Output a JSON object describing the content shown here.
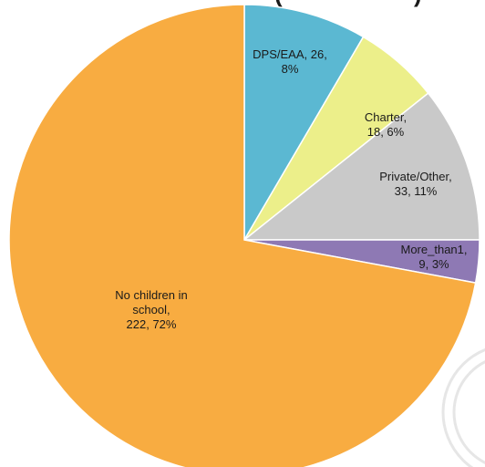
{
  "chart_data": {
    "type": "pie",
    "title_fragment": "(",
    "title_fragment_right": ")",
    "slices": [
      {
        "name": "DPS/EAA",
        "value": 26,
        "percent": "8%",
        "color": "#5bb8d2",
        "label_lines": [
          "DPS/EAA, 26,",
          "8%"
        ]
      },
      {
        "name": "Charter",
        "value": 18,
        "percent": "6%",
        "color": "#ecef8a",
        "label_lines": [
          "Charter,",
          "18, 6%"
        ]
      },
      {
        "name": "Private/Other",
        "value": 33,
        "percent": "11%",
        "color": "#c9c9c9",
        "label_lines": [
          "Private/Other,",
          "33, 11%"
        ]
      },
      {
        "name": "More_than1",
        "value": 9,
        "percent": "3%",
        "color": "#8e79b4",
        "label_lines": [
          "More_than1,",
          "9, 3%"
        ]
      },
      {
        "name": "No children in school",
        "value": 222,
        "percent": "72%",
        "color": "#f8ac41",
        "label_lines": [
          "No children in",
          "school,",
          "222, 72%"
        ]
      }
    ],
    "legend": "none",
    "start": "12 o'clock",
    "direction": "clockwise"
  }
}
